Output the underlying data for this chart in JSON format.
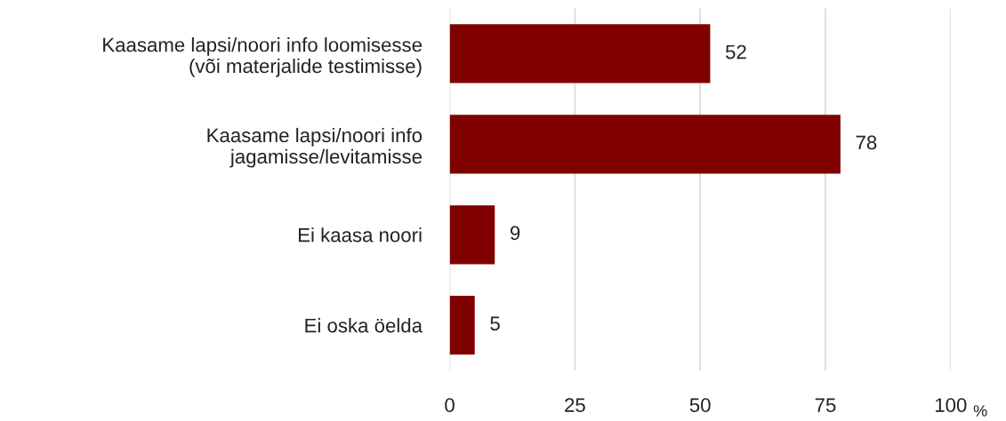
{
  "chart_data": {
    "type": "bar",
    "orientation": "horizontal",
    "categories": [
      "Kaasame lapsi/noori info loomisesse\n(või materjalide testimisse)",
      "Kaasame lapsi/noori info\njagamisse/levitamisse",
      "Ei kaasa noori",
      "Ei oska öelda"
    ],
    "values": [
      52,
      78,
      9,
      5
    ],
    "color": "#800000",
    "xlim": [
      0,
      100
    ],
    "xticks": [
      0,
      25,
      50,
      75,
      100
    ],
    "xlabel": "%",
    "grid": "x",
    "data_labels": true
  }
}
